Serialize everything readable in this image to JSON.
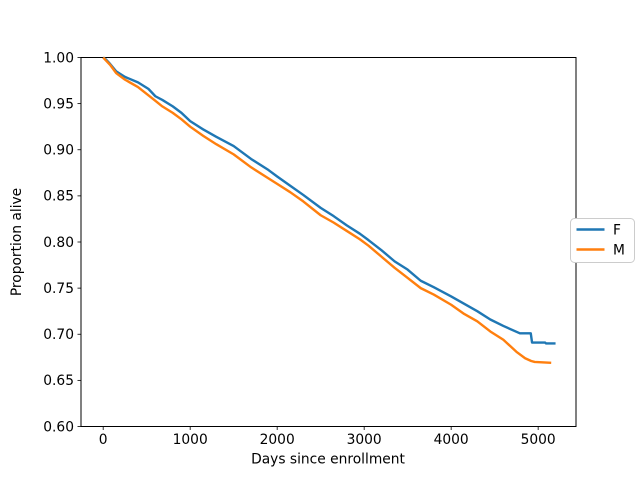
{
  "figure": {
    "background": "#ffffff",
    "frame_color": "#000000",
    "text_color": "#000000"
  },
  "chart_data": {
    "type": "line",
    "title": "",
    "xlabel": "Days since enrollment",
    "ylabel": "Proportion alive",
    "xlim": [
      -255,
      5435
    ],
    "ylim": [
      0.6,
      1.0
    ],
    "grid": false,
    "x_ticks": {
      "values": [
        0,
        1000,
        2000,
        3000,
        4000,
        5000
      ],
      "labels": [
        "0",
        "1000",
        "2000",
        "3000",
        "4000",
        "5000"
      ]
    },
    "y_ticks": {
      "values": [
        0.6,
        0.65,
        0.7,
        0.75,
        0.8,
        0.85,
        0.9,
        0.95,
        1.0
      ],
      "labels": [
        "0.60",
        "0.65",
        "0.70",
        "0.75",
        "0.80",
        "0.85",
        "0.90",
        "0.95",
        "1.00"
      ]
    },
    "legend": {
      "position": "right-outside-center",
      "border_color": "#cccccc",
      "background": "#ffffff"
    },
    "series": [
      {
        "name": "F",
        "color": "#1f77b4",
        "points": [
          [
            0,
            1.0
          ],
          [
            30,
            0.998
          ],
          [
            80,
            0.993
          ],
          [
            150,
            0.985
          ],
          [
            250,
            0.979
          ],
          [
            400,
            0.973
          ],
          [
            520,
            0.966
          ],
          [
            600,
            0.958
          ],
          [
            680,
            0.954
          ],
          [
            800,
            0.947
          ],
          [
            900,
            0.94
          ],
          [
            1000,
            0.931
          ],
          [
            1150,
            0.922
          ],
          [
            1300,
            0.914
          ],
          [
            1500,
            0.904
          ],
          [
            1700,
            0.89
          ],
          [
            1900,
            0.878
          ],
          [
            2000,
            0.871
          ],
          [
            2150,
            0.861
          ],
          [
            2300,
            0.851
          ],
          [
            2500,
            0.837
          ],
          [
            2650,
            0.828
          ],
          [
            2800,
            0.818
          ],
          [
            2950,
            0.809
          ],
          [
            3050,
            0.802
          ],
          [
            3200,
            0.791
          ],
          [
            3350,
            0.779
          ],
          [
            3500,
            0.77
          ],
          [
            3650,
            0.758
          ],
          [
            3800,
            0.751
          ],
          [
            4000,
            0.741
          ],
          [
            4150,
            0.733
          ],
          [
            4300,
            0.725
          ],
          [
            4450,
            0.716
          ],
          [
            4600,
            0.709
          ],
          [
            4790,
            0.701
          ],
          [
            4915,
            0.701
          ],
          [
            4930,
            0.691
          ],
          [
            5080,
            0.691
          ],
          [
            5090,
            0.69
          ],
          [
            5200,
            0.69
          ]
        ]
      },
      {
        "name": "M",
        "color": "#ff7f0e",
        "points": [
          [
            0,
            1.0
          ],
          [
            30,
            0.997
          ],
          [
            80,
            0.992
          ],
          [
            150,
            0.983
          ],
          [
            250,
            0.976
          ],
          [
            400,
            0.968
          ],
          [
            520,
            0.959
          ],
          [
            600,
            0.953
          ],
          [
            680,
            0.947
          ],
          [
            800,
            0.94
          ],
          [
            900,
            0.933
          ],
          [
            1000,
            0.925
          ],
          [
            1150,
            0.915
          ],
          [
            1300,
            0.906
          ],
          [
            1500,
            0.895
          ],
          [
            1700,
            0.881
          ],
          [
            1900,
            0.869
          ],
          [
            2000,
            0.863
          ],
          [
            2150,
            0.854
          ],
          [
            2300,
            0.844
          ],
          [
            2500,
            0.829
          ],
          [
            2650,
            0.821
          ],
          [
            2800,
            0.812
          ],
          [
            2950,
            0.803
          ],
          [
            3050,
            0.796
          ],
          [
            3200,
            0.784
          ],
          [
            3350,
            0.772
          ],
          [
            3500,
            0.761
          ],
          [
            3650,
            0.75
          ],
          [
            3800,
            0.743
          ],
          [
            4000,
            0.732
          ],
          [
            4150,
            0.722
          ],
          [
            4300,
            0.714
          ],
          [
            4450,
            0.703
          ],
          [
            4600,
            0.694
          ],
          [
            4750,
            0.681
          ],
          [
            4850,
            0.674
          ],
          [
            4920,
            0.671
          ],
          [
            4960,
            0.67
          ],
          [
            5150,
            0.669
          ]
        ]
      }
    ]
  }
}
